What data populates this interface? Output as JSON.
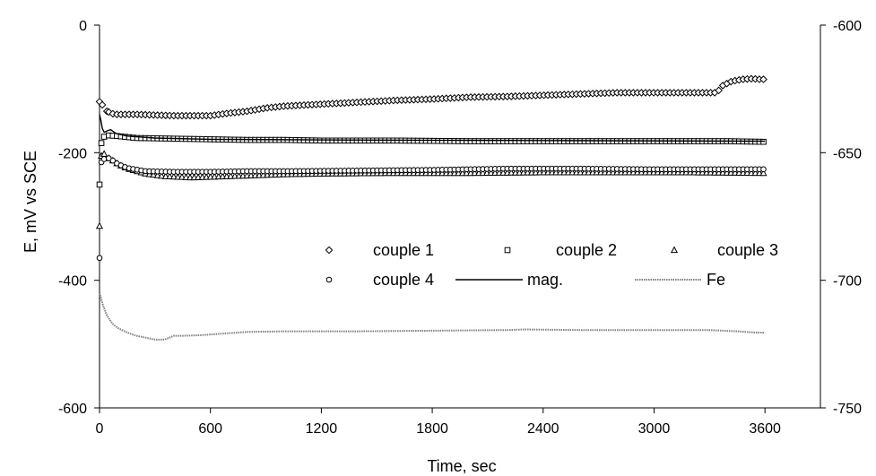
{
  "chart_data": {
    "type": "line",
    "title": "",
    "xlabel": "Time, sec",
    "ylabel": "E, mV vs SCE",
    "xlim": [
      0,
      3900
    ],
    "ylim": [
      -600,
      0
    ],
    "y2lim": [
      -750,
      -600
    ],
    "x_ticks": [
      0,
      600,
      1200,
      1800,
      2400,
      3000,
      3600
    ],
    "y_ticks": [
      0,
      -200,
      -400,
      -600
    ],
    "y2_ticks": [
      -600,
      -650,
      -700,
      -750
    ],
    "grid": false,
    "legend_position": "inside-lower-right",
    "series": [
      {
        "name": "couple 1",
        "axis": "left",
        "marker": "diamond",
        "color": "#000000",
        "points": [
          [
            0,
            -120
          ],
          [
            15,
            -125
          ],
          [
            40,
            -135
          ],
          [
            80,
            -140
          ],
          [
            200,
            -140
          ],
          [
            400,
            -142
          ],
          [
            600,
            -142
          ],
          [
            700,
            -138
          ],
          [
            800,
            -135
          ],
          [
            900,
            -130
          ],
          [
            1000,
            -127
          ],
          [
            1200,
            -124
          ],
          [
            1400,
            -121
          ],
          [
            1600,
            -118
          ],
          [
            1800,
            -116
          ],
          [
            2000,
            -113
          ],
          [
            2200,
            -112
          ],
          [
            2400,
            -110
          ],
          [
            2600,
            -108
          ],
          [
            2800,
            -106
          ],
          [
            3000,
            -106
          ],
          [
            3200,
            -106
          ],
          [
            3340,
            -106
          ],
          [
            3370,
            -95
          ],
          [
            3420,
            -88
          ],
          [
            3480,
            -85
          ],
          [
            3530,
            -84
          ],
          [
            3570,
            -85
          ],
          [
            3600,
            -85
          ]
        ]
      },
      {
        "name": "couple 2",
        "axis": "left",
        "marker": "square",
        "color": "#000000",
        "points": [
          [
            0,
            -250
          ],
          [
            10,
            -185
          ],
          [
            25,
            -175
          ],
          [
            50,
            -173
          ],
          [
            100,
            -174
          ],
          [
            200,
            -177
          ],
          [
            400,
            -178
          ],
          [
            600,
            -179
          ],
          [
            800,
            -180
          ],
          [
            1000,
            -180
          ],
          [
            1200,
            -181
          ],
          [
            1600,
            -181
          ],
          [
            2000,
            -182
          ],
          [
            2400,
            -182
          ],
          [
            2800,
            -182
          ],
          [
            3000,
            -182
          ],
          [
            3200,
            -182
          ],
          [
            3400,
            -182
          ],
          [
            3600,
            -183
          ]
        ]
      },
      {
        "name": "couple 3",
        "axis": "left",
        "marker": "triangle",
        "color": "#000000",
        "points": [
          [
            0,
            -315
          ],
          [
            10,
            -205
          ],
          [
            25,
            -202
          ],
          [
            45,
            -208
          ],
          [
            70,
            -212
          ],
          [
            100,
            -218
          ],
          [
            150,
            -225
          ],
          [
            250,
            -233
          ],
          [
            350,
            -237
          ],
          [
            500,
            -239
          ],
          [
            600,
            -238
          ],
          [
            800,
            -236
          ],
          [
            1000,
            -234
          ],
          [
            1200,
            -233
          ],
          [
            1600,
            -232
          ],
          [
            2000,
            -232
          ],
          [
            2400,
            -231
          ],
          [
            2800,
            -231
          ],
          [
            3200,
            -231
          ],
          [
            3600,
            -232
          ]
        ]
      },
      {
        "name": "couple 4",
        "axis": "left",
        "marker": "circle",
        "color": "#000000",
        "points": [
          [
            0,
            -365
          ],
          [
            10,
            -215
          ],
          [
            25,
            -210
          ],
          [
            45,
            -208
          ],
          [
            70,
            -212
          ],
          [
            100,
            -218
          ],
          [
            150,
            -224
          ],
          [
            250,
            -229
          ],
          [
            400,
            -230
          ],
          [
            600,
            -230
          ],
          [
            800,
            -229
          ],
          [
            1000,
            -229
          ],
          [
            1400,
            -228
          ],
          [
            1800,
            -227
          ],
          [
            2200,
            -225
          ],
          [
            2600,
            -225
          ],
          [
            3000,
            -226
          ],
          [
            3400,
            -226
          ],
          [
            3600,
            -226
          ]
        ]
      },
      {
        "name": "mag.",
        "axis": "left",
        "style": "solid",
        "color": "#000000",
        "points": [
          [
            0,
            -140
          ],
          [
            8,
            -150
          ],
          [
            15,
            -162
          ],
          [
            25,
            -168
          ],
          [
            40,
            -166
          ],
          [
            60,
            -164
          ],
          [
            90,
            -170
          ],
          [
            150,
            -174
          ],
          [
            300,
            -177
          ],
          [
            600,
            -179
          ],
          [
            1200,
            -180
          ],
          [
            2400,
            -181
          ],
          [
            3600,
            -182
          ]
        ]
      },
      {
        "name": "Fe",
        "axis": "left",
        "style": "dotted",
        "color": "#808080",
        "points": [
          [
            0,
            -420
          ],
          [
            20,
            -440
          ],
          [
            40,
            -455
          ],
          [
            70,
            -468
          ],
          [
            100,
            -475
          ],
          [
            150,
            -482
          ],
          [
            200,
            -487
          ],
          [
            250,
            -490
          ],
          [
            300,
            -493
          ],
          [
            350,
            -493
          ],
          [
            380,
            -490
          ],
          [
            400,
            -487
          ],
          [
            450,
            -487
          ],
          [
            550,
            -486
          ],
          [
            650,
            -484
          ],
          [
            800,
            -481
          ],
          [
            1000,
            -480
          ],
          [
            1400,
            -480
          ],
          [
            1800,
            -479
          ],
          [
            2200,
            -478
          ],
          [
            2300,
            -477
          ],
          [
            2600,
            -478
          ],
          [
            3000,
            -478
          ],
          [
            3300,
            -478
          ],
          [
            3450,
            -480
          ],
          [
            3550,
            -482
          ],
          [
            3600,
            -482
          ]
        ]
      }
    ]
  }
}
